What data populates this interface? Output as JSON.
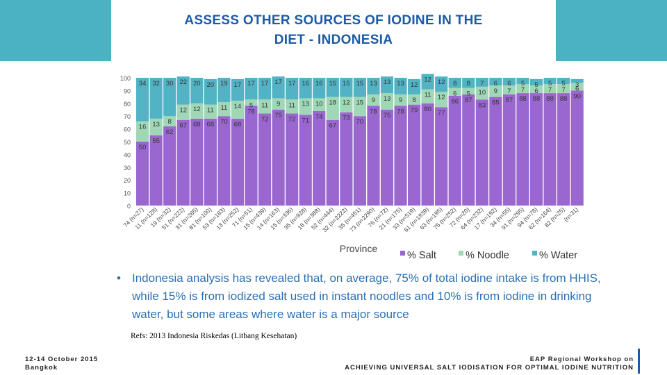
{
  "slide": {
    "title": "ASSESS OTHER SOURCES OF IODINE IN THE\nDIET - INDONESIA",
    "bullet": "Indonesia analysis has revealed that, on average, 75% of total iodine intake is from HHIS, while 15% is from iodized salt used in instant noodles  and 10% is from iodine in drinking water, but some areas where water is a major source",
    "refs": "Refs: 2013 Indonesia Riskedas (Litbang Kesehatan)",
    "date": "12-14 October 2015\nBangkok",
    "footer_line1": "EAP Regional Workshop on",
    "footer_line2": "ACHIEVING UNIVERSAL SALT IODISATION FOR OPTIMAL IODINE NUTRITION"
  },
  "colors": {
    "salt": "#9a66cf",
    "noodle": "#9fd7b7",
    "water": "#52b3c4",
    "header": "#4bb2c3",
    "title": "#1a5aa8"
  },
  "chart_data": {
    "type": "bar",
    "stacked": true,
    "xlabel": "Province",
    "ylim": [
      0,
      100
    ],
    "yticks": [
      0,
      10,
      20,
      30,
      40,
      50,
      60,
      70,
      80,
      90,
      100
    ],
    "categories": [
      "74 (n=27)",
      "11 (n=128)",
      "19 (n=32)",
      "51 (n=222)",
      "31 (n=285)",
      "81 (n=100)",
      "53 (n=183)",
      "13 (n=252)",
      "71 (n=51)",
      "15 (n=439)",
      "14 (n=163)",
      "15 (n=336)",
      "35 (n=928)",
      "18 (n=388)",
      "52 (n=444)",
      "32 (n=2222)",
      "35 (n=451)",
      "73 (n=2290)",
      "76 (n=72)",
      "21 (n=175)",
      "33 (n=519)",
      "61 (n=1839)",
      "63 (n=195)",
      "75 (n=252)",
      "72 (n=20)",
      "64 (n=232)",
      "17 (n=192)",
      "34 (n=55)",
      "91 (n=295)",
      "94 (n=78)",
      "62 (n=164)",
      "82 (n=25)",
      "(n=31)"
    ],
    "series": [
      {
        "name": "% Salt",
        "values": [
          50,
          55,
          62,
          67,
          68,
          68,
          70,
          68,
          78,
          72,
          75,
          72,
          71,
          74,
          67,
          73,
          70,
          78,
          75,
          78,
          79,
          80,
          77,
          86,
          87,
          83,
          85,
          87,
          88,
          88,
          88,
          88,
          90
        ]
      },
      {
        "name": "% Noodle",
        "values": [
          16,
          13,
          8,
          12,
          12,
          11,
          11,
          14,
          5,
          11,
          9,
          11,
          13,
          10,
          18,
          12,
          15,
          9,
          13,
          9,
          8,
          11,
          12,
          6,
          5,
          10,
          9,
          7,
          7,
          6,
          7,
          7,
          6
        ]
      },
      {
        "name": "% Water",
        "values": [
          34,
          32,
          30,
          22,
          20,
          20,
          19,
          17,
          17,
          17,
          17,
          17,
          16,
          16,
          15,
          15,
          15,
          13,
          13,
          13,
          12,
          12,
          12,
          8,
          8,
          7,
          6,
          6,
          5,
          5,
          5,
          5,
          3
        ]
      }
    ],
    "legend": [
      "% Salt",
      "% Noodle",
      "% Water"
    ],
    "legend_position": "bottom"
  }
}
